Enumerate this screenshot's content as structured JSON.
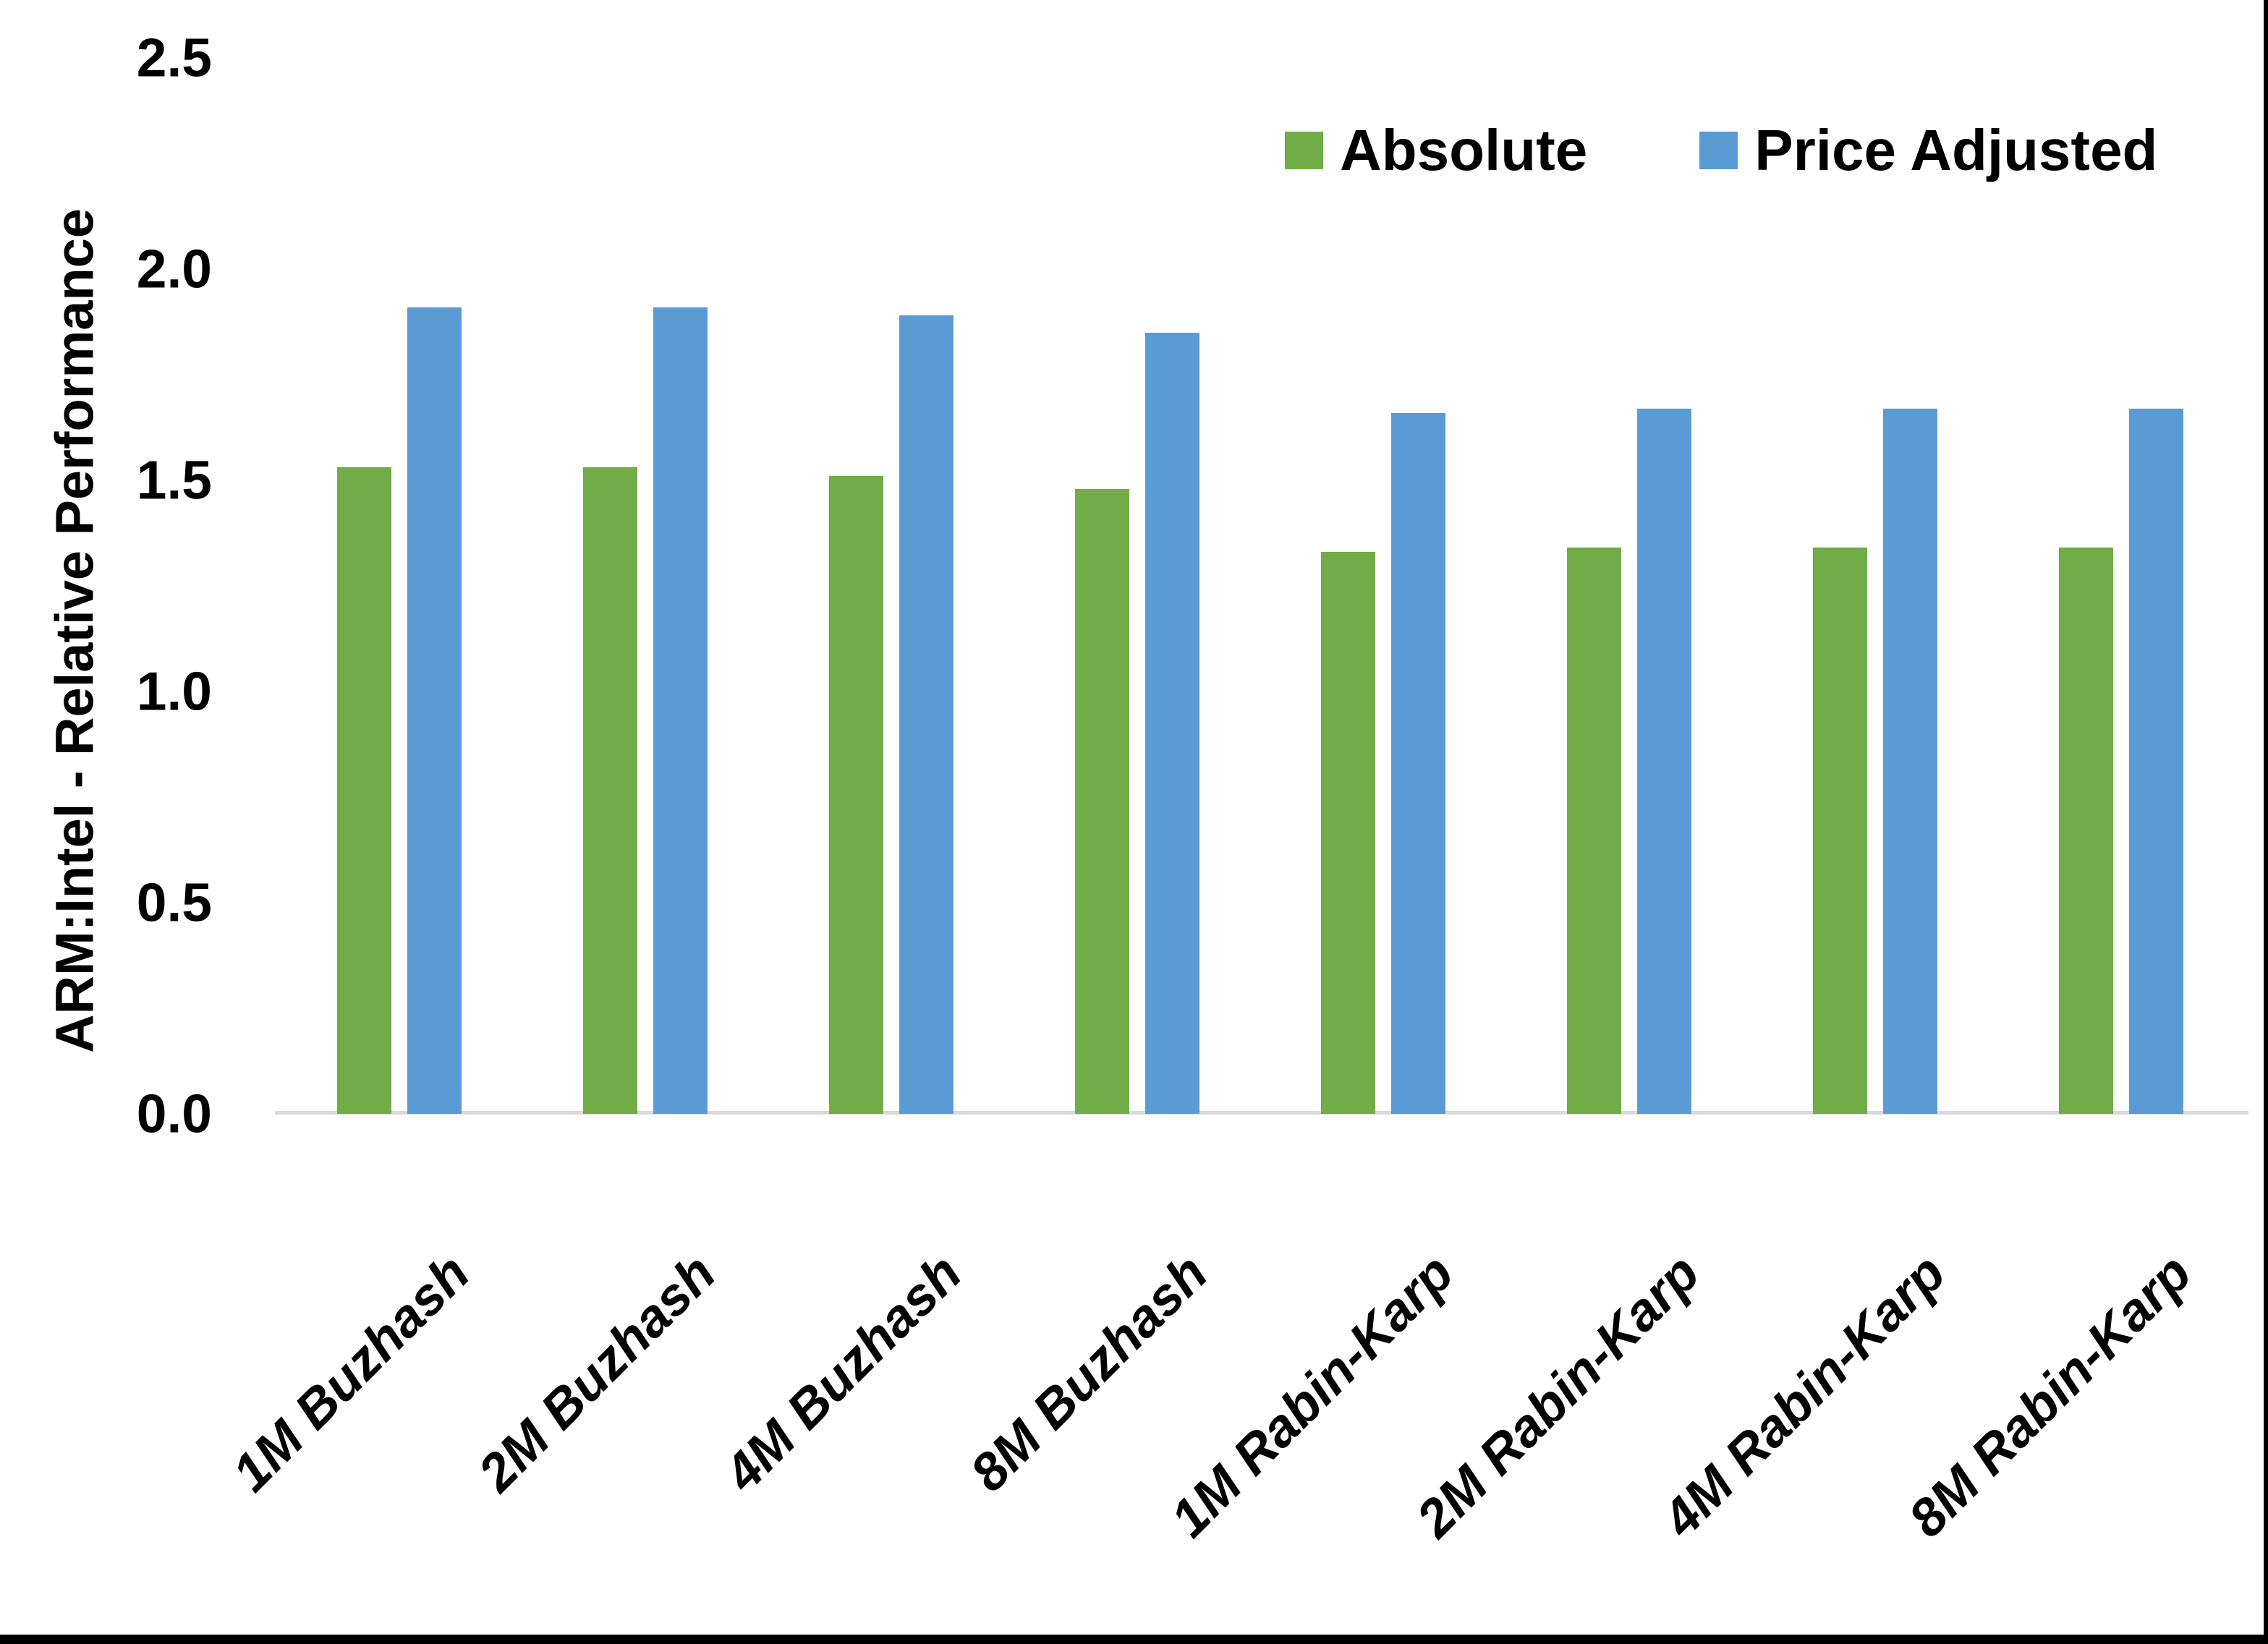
{
  "chart_data": {
    "type": "bar",
    "title": "",
    "categories": [
      "1M Buzhash",
      "2M Buzhash",
      "4M Buzhash",
      "8M Buzhash",
      "1M Rabin-Karp",
      "2M Rabin-Karp",
      "4M Rabin-Karp",
      "8M Rabin-Karp"
    ],
    "series": [
      {
        "name": "Absolute",
        "color": "#70AD47",
        "values": [
          1.53,
          1.53,
          1.51,
          1.48,
          1.33,
          1.34,
          1.34,
          1.34
        ]
      },
      {
        "name": "Price Adjusted",
        "color": "#5B9BD5",
        "values": [
          1.91,
          1.91,
          1.89,
          1.85,
          1.66,
          1.67,
          1.67,
          1.67
        ]
      }
    ],
    "xlabel": "",
    "ylabel": "ARM:Intel - Relative Performance",
    "ylim": [
      0,
      2.5
    ],
    "yticks": [
      0.0,
      0.5,
      1.0,
      1.5,
      2.0,
      2.5
    ],
    "ytick_labels": [
      "0.0",
      "0.5",
      "1.0",
      "1.5",
      "2.0",
      "2.5"
    ],
    "grid": false,
    "legend_position": "top-right",
    "colors": {
      "axis_line": "#D9D9D9",
      "text": "#000000",
      "background": "#FFFFFF",
      "screen_edge": "#000000"
    }
  }
}
